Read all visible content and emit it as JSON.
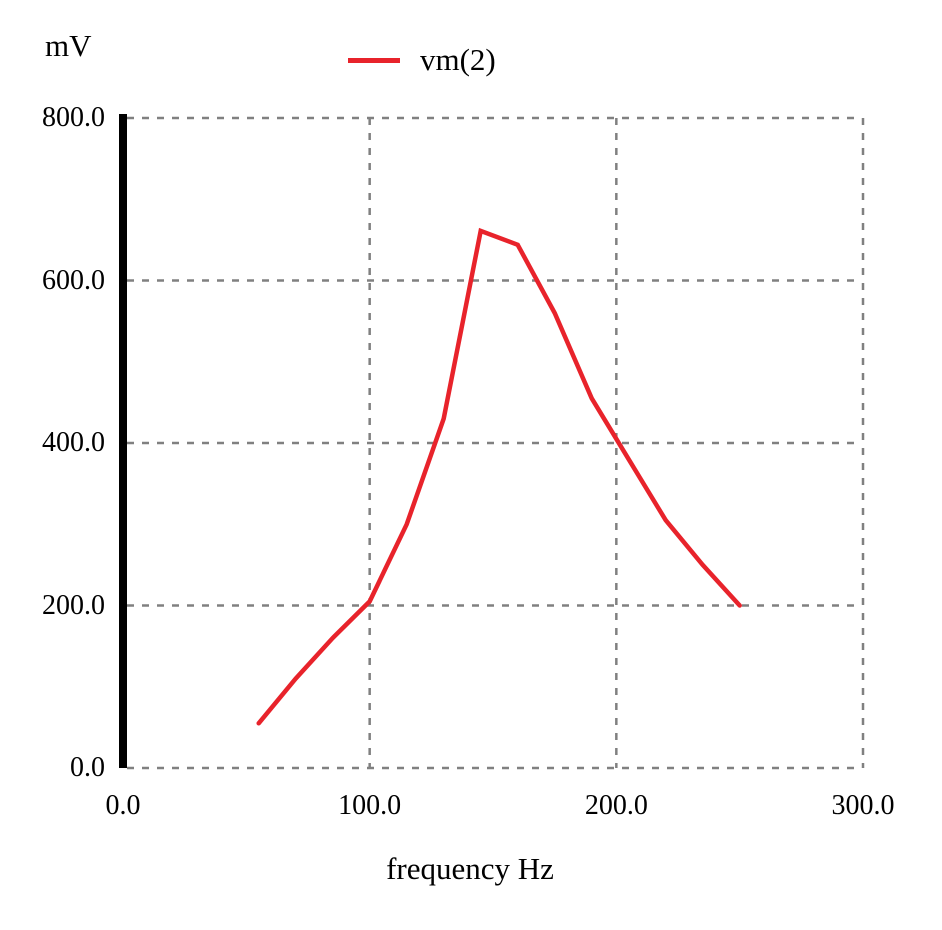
{
  "figure": {
    "y_unit_label": "mV",
    "x_axis_label": "frequency Hz"
  },
  "colors": {
    "series_red": "#e8232b",
    "grid_gray": "#808080",
    "axis_black": "#000000",
    "background": "#ffffff"
  },
  "chart_data": {
    "type": "line",
    "title": "",
    "xlabel": "frequency Hz",
    "ylabel": "mV",
    "xlim": [
      0,
      300
    ],
    "ylim": [
      0,
      800
    ],
    "x_tick_values": [
      0,
      100,
      200,
      300
    ],
    "x_tick_labels": [
      "0.0",
      "100.0",
      "200.0",
      "300.0"
    ],
    "y_tick_values": [
      800,
      600,
      400,
      200,
      0
    ],
    "y_tick_labels": [
      "800.0",
      "600.0",
      "400.0",
      "200.0",
      "0.0"
    ],
    "grid": "dashed",
    "legend_position": "top-center",
    "series": [
      {
        "name": "vm(2)",
        "color": "#e8232b",
        "x": [
          55,
          70,
          85,
          100,
          115,
          130,
          145,
          160,
          175,
          190,
          205,
          220,
          235,
          250
        ],
        "values": [
          55,
          110,
          160,
          205,
          300,
          430,
          661,
          644,
          560,
          455,
          380,
          305,
          250,
          200
        ]
      }
    ]
  }
}
